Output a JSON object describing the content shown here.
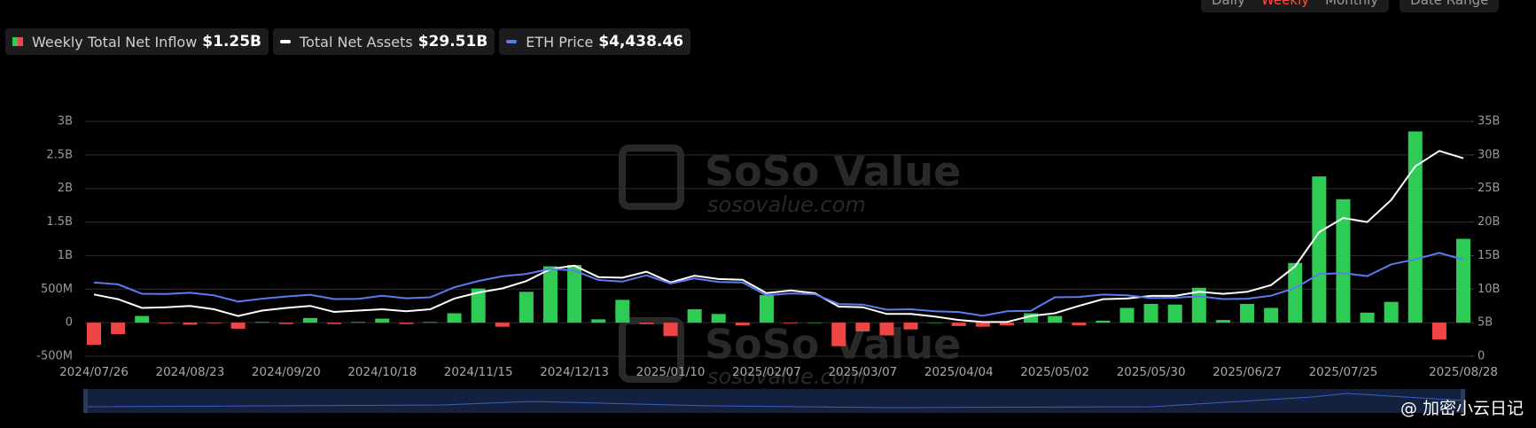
{
  "chart_data": {
    "type": "combo",
    "categories": [
      "2024/07/26",
      null,
      null,
      null,
      "2024/08/23",
      null,
      null,
      null,
      "2024/09/20",
      null,
      null,
      null,
      "2024/10/18",
      null,
      null,
      null,
      "2024/11/15",
      null,
      null,
      null,
      "2024/12/13",
      null,
      null,
      null,
      "2025/01/10",
      null,
      null,
      null,
      "2025/02/07",
      null,
      null,
      null,
      "2025/03/07",
      null,
      null,
      null,
      "2025/04/04",
      null,
      null,
      null,
      "2025/05/02",
      null,
      null,
      null,
      "2025/05/30",
      null,
      null,
      null,
      "2025/06/27",
      null,
      null,
      null,
      "2025/07/25",
      null,
      null,
      null,
      null,
      "2025/08/28"
    ],
    "series": [
      {
        "name": "Weekly Total Net Inflow",
        "legend_value": "$1.25B",
        "type": "bar",
        "color": "#2ecc55",
        "negative_color": "#f04545",
        "values": [
          -0.33,
          -0.17,
          0.1,
          -0.01,
          -0.03,
          -0.01,
          -0.09,
          0.01,
          -0.02,
          0.07,
          -0.02,
          0.01,
          0.06,
          -0.02,
          0.01,
          0.14,
          0.51,
          -0.06,
          0.46,
          0.84,
          0.86,
          0.05,
          0.34,
          -0.02,
          -0.2,
          0.2,
          0.13,
          -0.04,
          0.41,
          -0.01,
          0.0,
          -0.35,
          -0.13,
          -0.19,
          -0.1,
          0.0,
          -0.05,
          -0.06,
          -0.04,
          0.14,
          0.1,
          -0.04,
          0.03,
          0.22,
          0.28,
          0.27,
          0.52,
          0.04,
          0.28,
          0.22,
          0.89,
          2.18,
          1.84,
          0.15,
          0.31,
          2.85,
          -0.25,
          1.25
        ]
      },
      {
        "name": "Total Net Assets",
        "legend_value": "$29.51B",
        "type": "line",
        "axis": "y2",
        "color": "#ffffff",
        "values": [
          9.2,
          8.5,
          7.2,
          7.3,
          7.5,
          7.0,
          6.0,
          6.8,
          7.2,
          7.5,
          6.6,
          6.8,
          7.0,
          6.7,
          7.0,
          8.6,
          9.5,
          10.1,
          11.2,
          13.0,
          13.5,
          11.8,
          11.7,
          12.6,
          11.0,
          12.0,
          11.5,
          11.4,
          9.4,
          9.8,
          9.4,
          7.4,
          7.3,
          6.3,
          6.3,
          5.9,
          5.4,
          5.1,
          5.1,
          6.0,
          6.4,
          7.5,
          8.5,
          8.6,
          9.0,
          9.0,
          9.6,
          9.3,
          9.6,
          10.6,
          13.4,
          18.5,
          20.6,
          20.0,
          23.3,
          28.3,
          30.6,
          29.51
        ]
      },
      {
        "name": "ETH Price",
        "legend_value": "$4,438.46",
        "type": "line",
        "axis": "y3",
        "color": "#5b7cf0",
        "values": [
          3280,
          3180,
          2700,
          2690,
          2750,
          2620,
          2300,
          2450,
          2560,
          2650,
          2430,
          2440,
          2600,
          2470,
          2520,
          3030,
          3350,
          3590,
          3710,
          3970,
          3880,
          3400,
          3320,
          3640,
          3220,
          3480,
          3300,
          3280,
          2620,
          2720,
          2680,
          2180,
          2150,
          1890,
          1910,
          1810,
          1770,
          1580,
          1810,
          1830,
          2520,
          2540,
          2660,
          2620,
          2480,
          2500,
          2570,
          2430,
          2450,
          2600,
          3000,
          3700,
          3750,
          3600,
          4200,
          4450,
          4780,
          4438.46
        ]
      }
    ],
    "ylim": [
      -0.5,
      3
    ],
    "yticks": [
      {
        "value": -0.5,
        "label": "-500M"
      },
      0,
      {
        "value": 0.5,
        "label": "500M"
      },
      {
        "value": 1,
        "label": "1B"
      },
      {
        "value": 1.5,
        "label": "1.5B"
      },
      {
        "value": 2,
        "label": "2B"
      },
      {
        "value": 2.5,
        "label": "2.5B"
      },
      {
        "value": 3,
        "label": "3B"
      }
    ],
    "y2lim": [
      0,
      35
    ],
    "y2ticks": [
      0,
      {
        "value": 5,
        "label": "5B"
      },
      {
        "value": 10,
        "label": "10B"
      },
      {
        "value": 15,
        "label": "15B"
      },
      {
        "value": 20,
        "label": "20B"
      },
      {
        "value": 25,
        "label": "25B"
      },
      {
        "value": 30,
        "label": "30B"
      },
      {
        "value": 35,
        "label": "35B"
      }
    ],
    "grid": true
  },
  "controls": {
    "periods": [
      "Daily",
      "Weekly",
      "Monthly"
    ],
    "active_period": 1,
    "date_range": "Date Range"
  },
  "watermark": {
    "brand": "SoSo Value",
    "url": "sosovalue.com"
  },
  "credit": "@ 加密小云日记"
}
